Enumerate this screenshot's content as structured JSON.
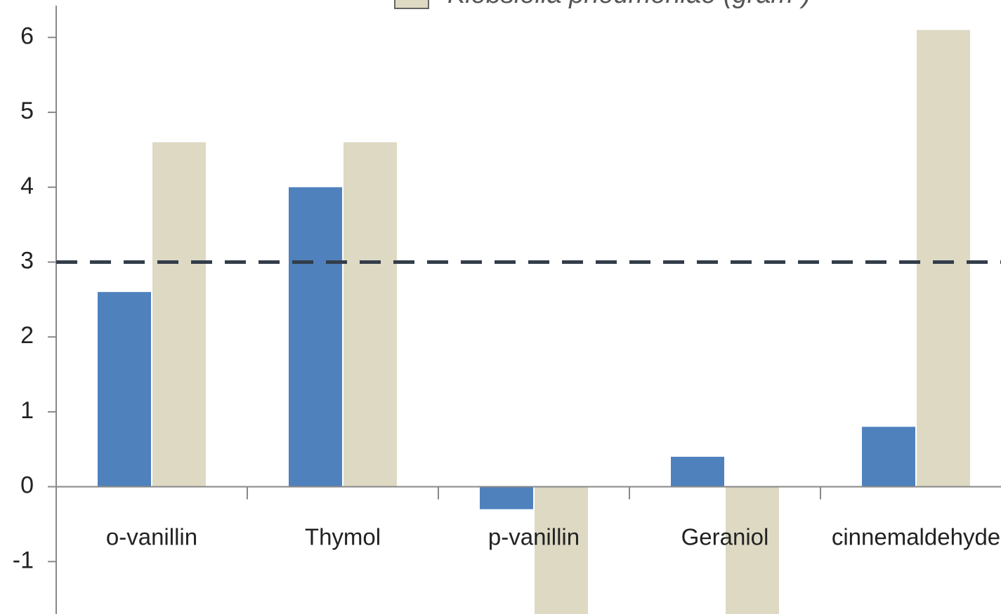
{
  "chart_data": {
    "type": "bar",
    "categories": [
      "o-vanillin",
      "Thymol",
      "p-vanillin",
      "Geraniol",
      "cinnemaldehyde"
    ],
    "series": [
      {
        "color": "#4f81bd",
        "values": [
          2.6,
          4.0,
          -0.3,
          0.4,
          0.8
        ]
      },
      {
        "name": "Klebsiella pneumoniae (gram-)",
        "color": "#ddd9c3",
        "values": [
          4.6,
          4.6,
          -2,
          -2,
          6.1
        ]
      }
    ],
    "ylim": [
      -1.7,
      6.5
    ],
    "yticks": [
      -1,
      0,
      1,
      2,
      3,
      4,
      5,
      6
    ],
    "reference_line": {
      "value": 3,
      "color": "#333d4a"
    }
  }
}
